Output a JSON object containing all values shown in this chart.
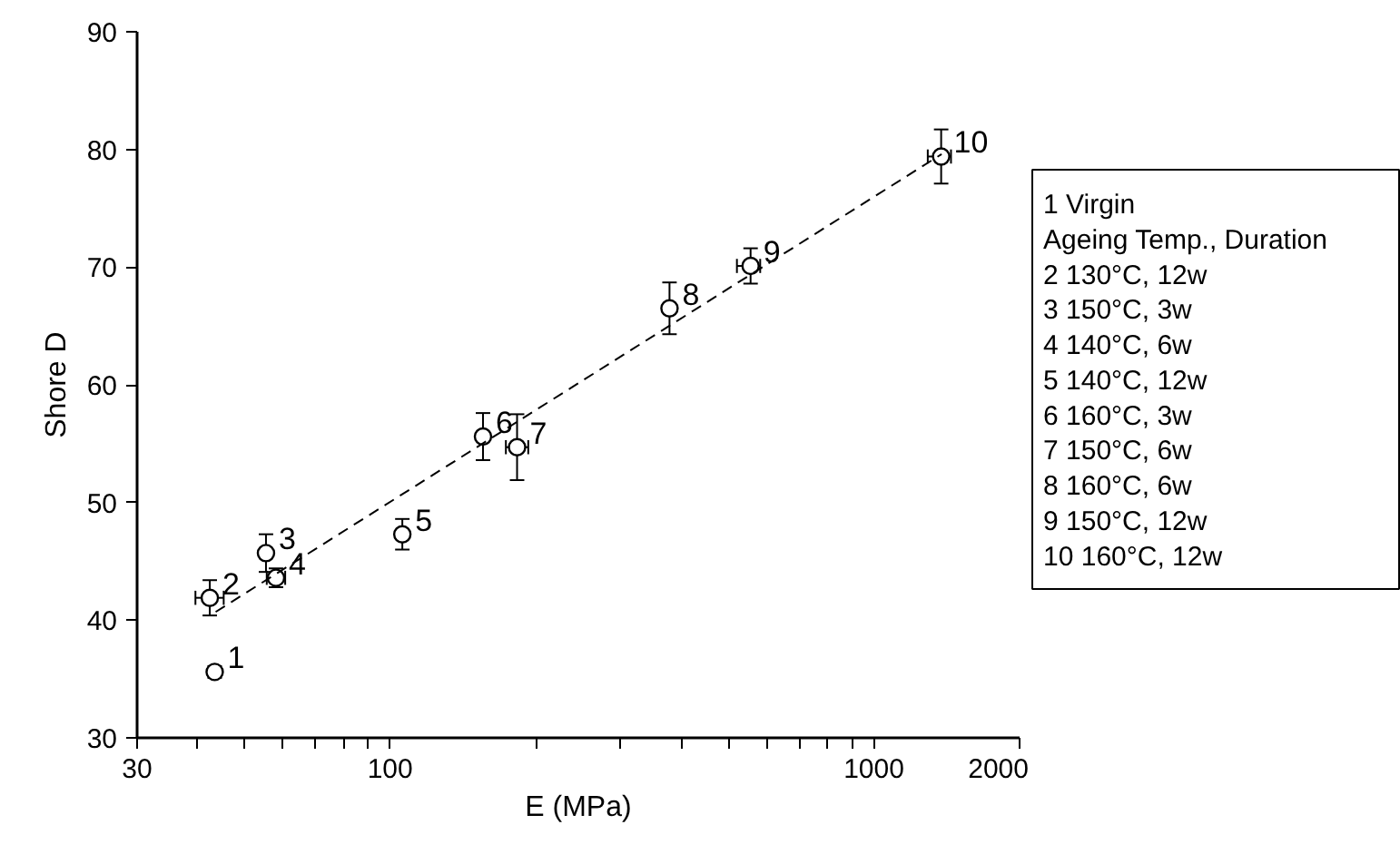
{
  "chart_data": {
    "type": "scatter",
    "xlabel": "E (MPa)",
    "ylabel": "Shore D",
    "log": "x",
    "grid": false,
    "xlim": [
      30,
      2000
    ],
    "ylim": [
      30,
      90
    ],
    "xticks": [
      30,
      {
        "value": 40,
        "label": null
      },
      {
        "value": 50,
        "label": null
      },
      {
        "value": 60,
        "label": null
      },
      {
        "value": 70,
        "label": null
      },
      {
        "value": 80,
        "label": null
      },
      {
        "value": 90,
        "label": null
      },
      100,
      {
        "value": 200,
        "label": null
      },
      {
        "value": 300,
        "label": null
      },
      {
        "value": 400,
        "label": null
      },
      {
        "value": 500,
        "label": null
      },
      {
        "value": 600,
        "label": null
      },
      {
        "value": 700,
        "label": null
      },
      {
        "value": 800,
        "label": null
      },
      {
        "value": 900,
        "label": null
      },
      1000,
      2000
    ],
    "yticks": [
      30,
      40,
      50,
      60,
      70,
      80,
      90
    ],
    "series": [
      {
        "marker": "circle",
        "color": "#000000",
        "x": [
          43.4,
          42.4,
          55.4,
          58.1,
          106,
          155.6,
          183,
          378,
          556,
          1377
        ],
        "values": [
          35.6,
          41.9,
          45.7,
          43.6,
          47.3,
          55.6,
          54.7,
          66.5,
          70.1,
          79.4
        ],
        "errors": [
          0.5,
          1.5,
          1.6,
          0.8,
          1.3,
          2.0,
          2.8,
          2.2,
          1.5,
          2.3
        ],
        "xerrors": [
          null,
          [
            39.6,
            45.3
          ],
          null,
          [
            55.6,
            60.7
          ],
          null,
          null,
          [
            173.5,
            193
          ],
          null,
          [
            521,
            582
          ],
          [
            1292,
            1443
          ]
        ]
      },
      {
        "type": "line",
        "line_style": "dashed",
        "color": "#000000",
        "x": [
          43.6,
          1380
        ],
        "values": [
          40.7,
          79.6
        ]
      }
    ],
    "annotations": [
      {
        "text": "1",
        "x": 43.4,
        "y": 35.6
      },
      {
        "text": "2",
        "x": 42.4,
        "y": 41.9
      },
      {
        "text": "3",
        "x": 55.4,
        "y": 45.7
      },
      {
        "text": "4",
        "x": 58.1,
        "y": 43.6
      },
      {
        "text": "5",
        "x": 106,
        "y": 47.3
      },
      {
        "text": "6",
        "x": 155.6,
        "y": 55.6
      },
      {
        "text": "7",
        "x": 183,
        "y": 54.7
      },
      {
        "text": "8",
        "x": 378,
        "y": 66.5
      },
      {
        "text": "9",
        "x": 556,
        "y": 70.1
      },
      {
        "text": "10",
        "x": 1377,
        "y": 79.4
      },
      "1   Virgin",
      "Ageing Temp., Duration",
      "2   130°C, 12w",
      "3   150°C, 3w",
      "4   140°C, 6w",
      "5   140°C, 12w",
      "6   160°C, 3w",
      "7   150°C, 6w",
      "8   160°C, 6w",
      "9   150°C, 12w",
      "10 160°C, 12w"
    ]
  }
}
